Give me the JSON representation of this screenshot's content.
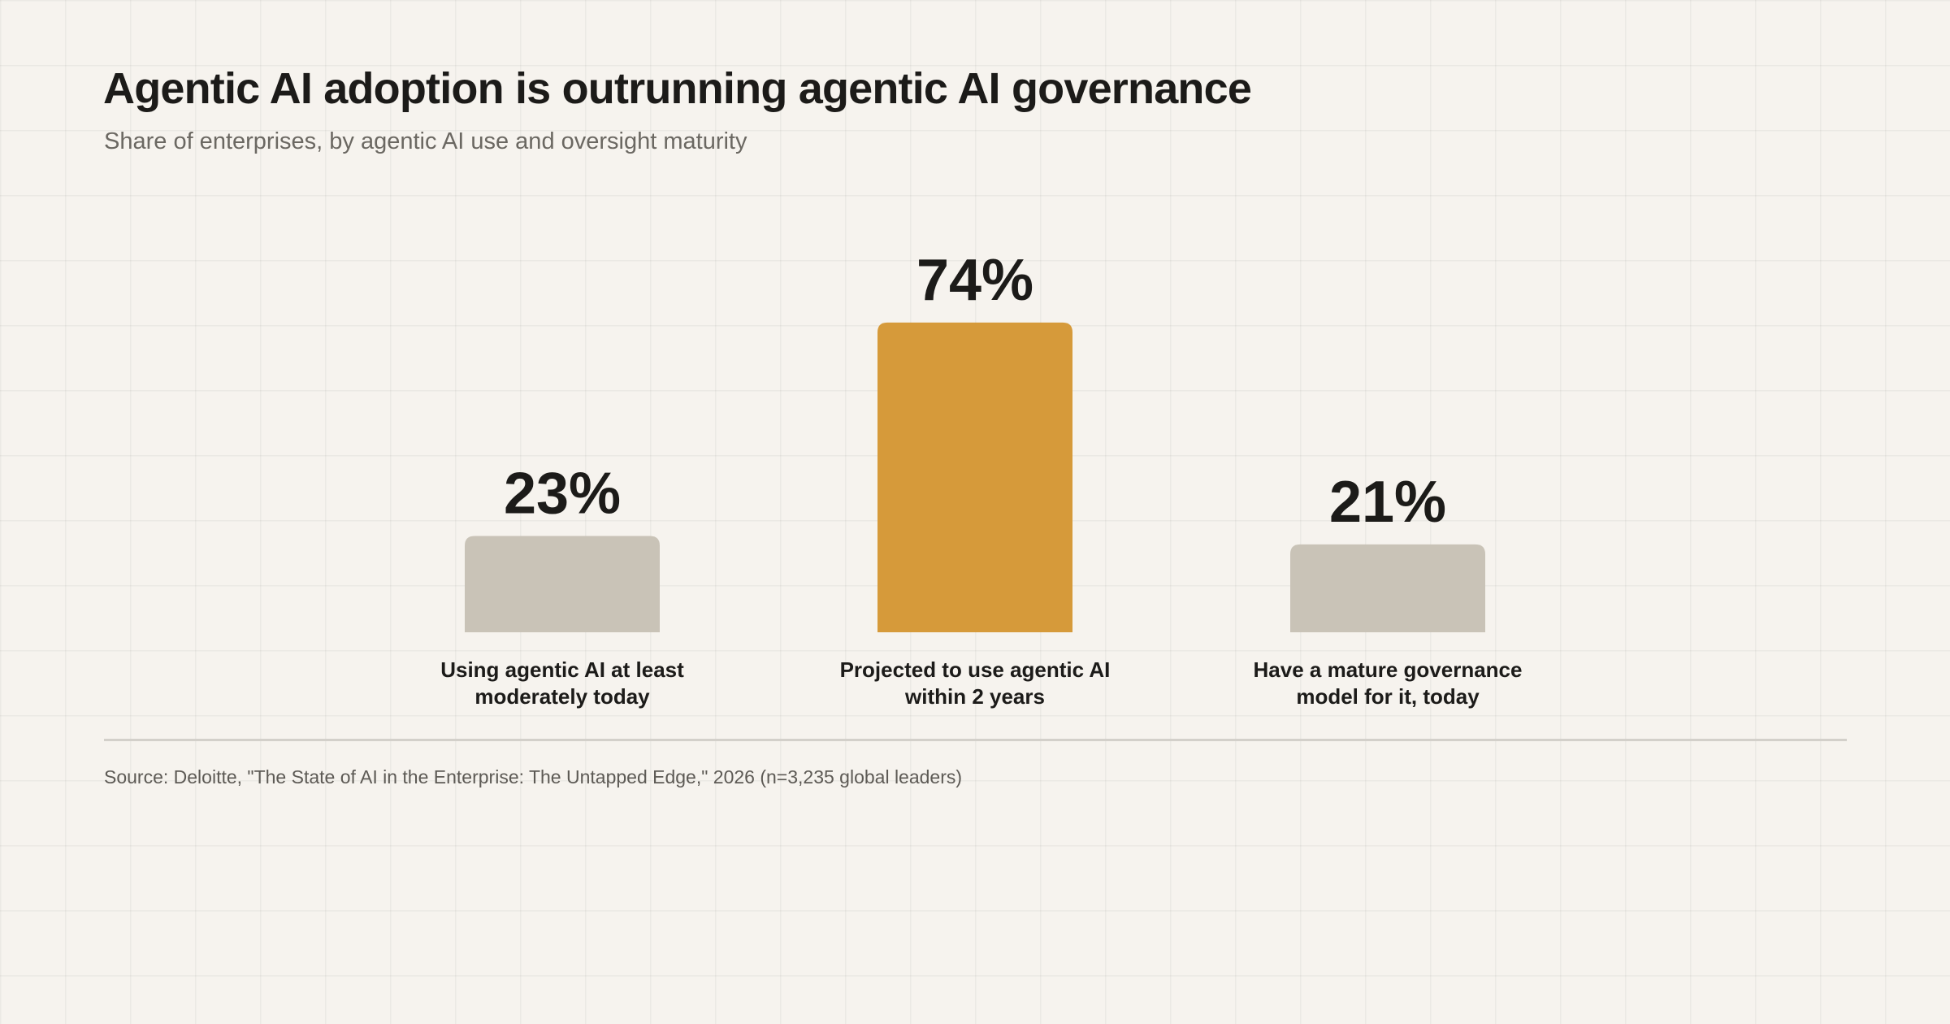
{
  "title": "Agentic AI adoption is outrunning agentic AI governance",
  "subtitle": "Share of enterprises, by agentic AI use and oversight maturity",
  "source": "Source: Deloitte, \"The State of AI in the Enterprise: The Untapped Edge,\" 2026 (n=3,235 global leaders)",
  "colors": {
    "muted_bar": "#c9c3b7",
    "accent_bar": "#d69a3a"
  },
  "chart_data": {
    "type": "bar",
    "categories": [
      [
        "Using agentic AI at least",
        "moderately today"
      ],
      [
        "Projected to use agentic AI",
        "within 2 years"
      ],
      [
        "Have a mature governance",
        "model for it, today"
      ]
    ],
    "values": [
      23,
      74,
      21
    ],
    "value_labels": [
      "23%",
      "74%",
      "21%"
    ],
    "highlight_index": 1,
    "ylim": [
      0,
      100
    ],
    "grid": false,
    "legend": "none"
  }
}
